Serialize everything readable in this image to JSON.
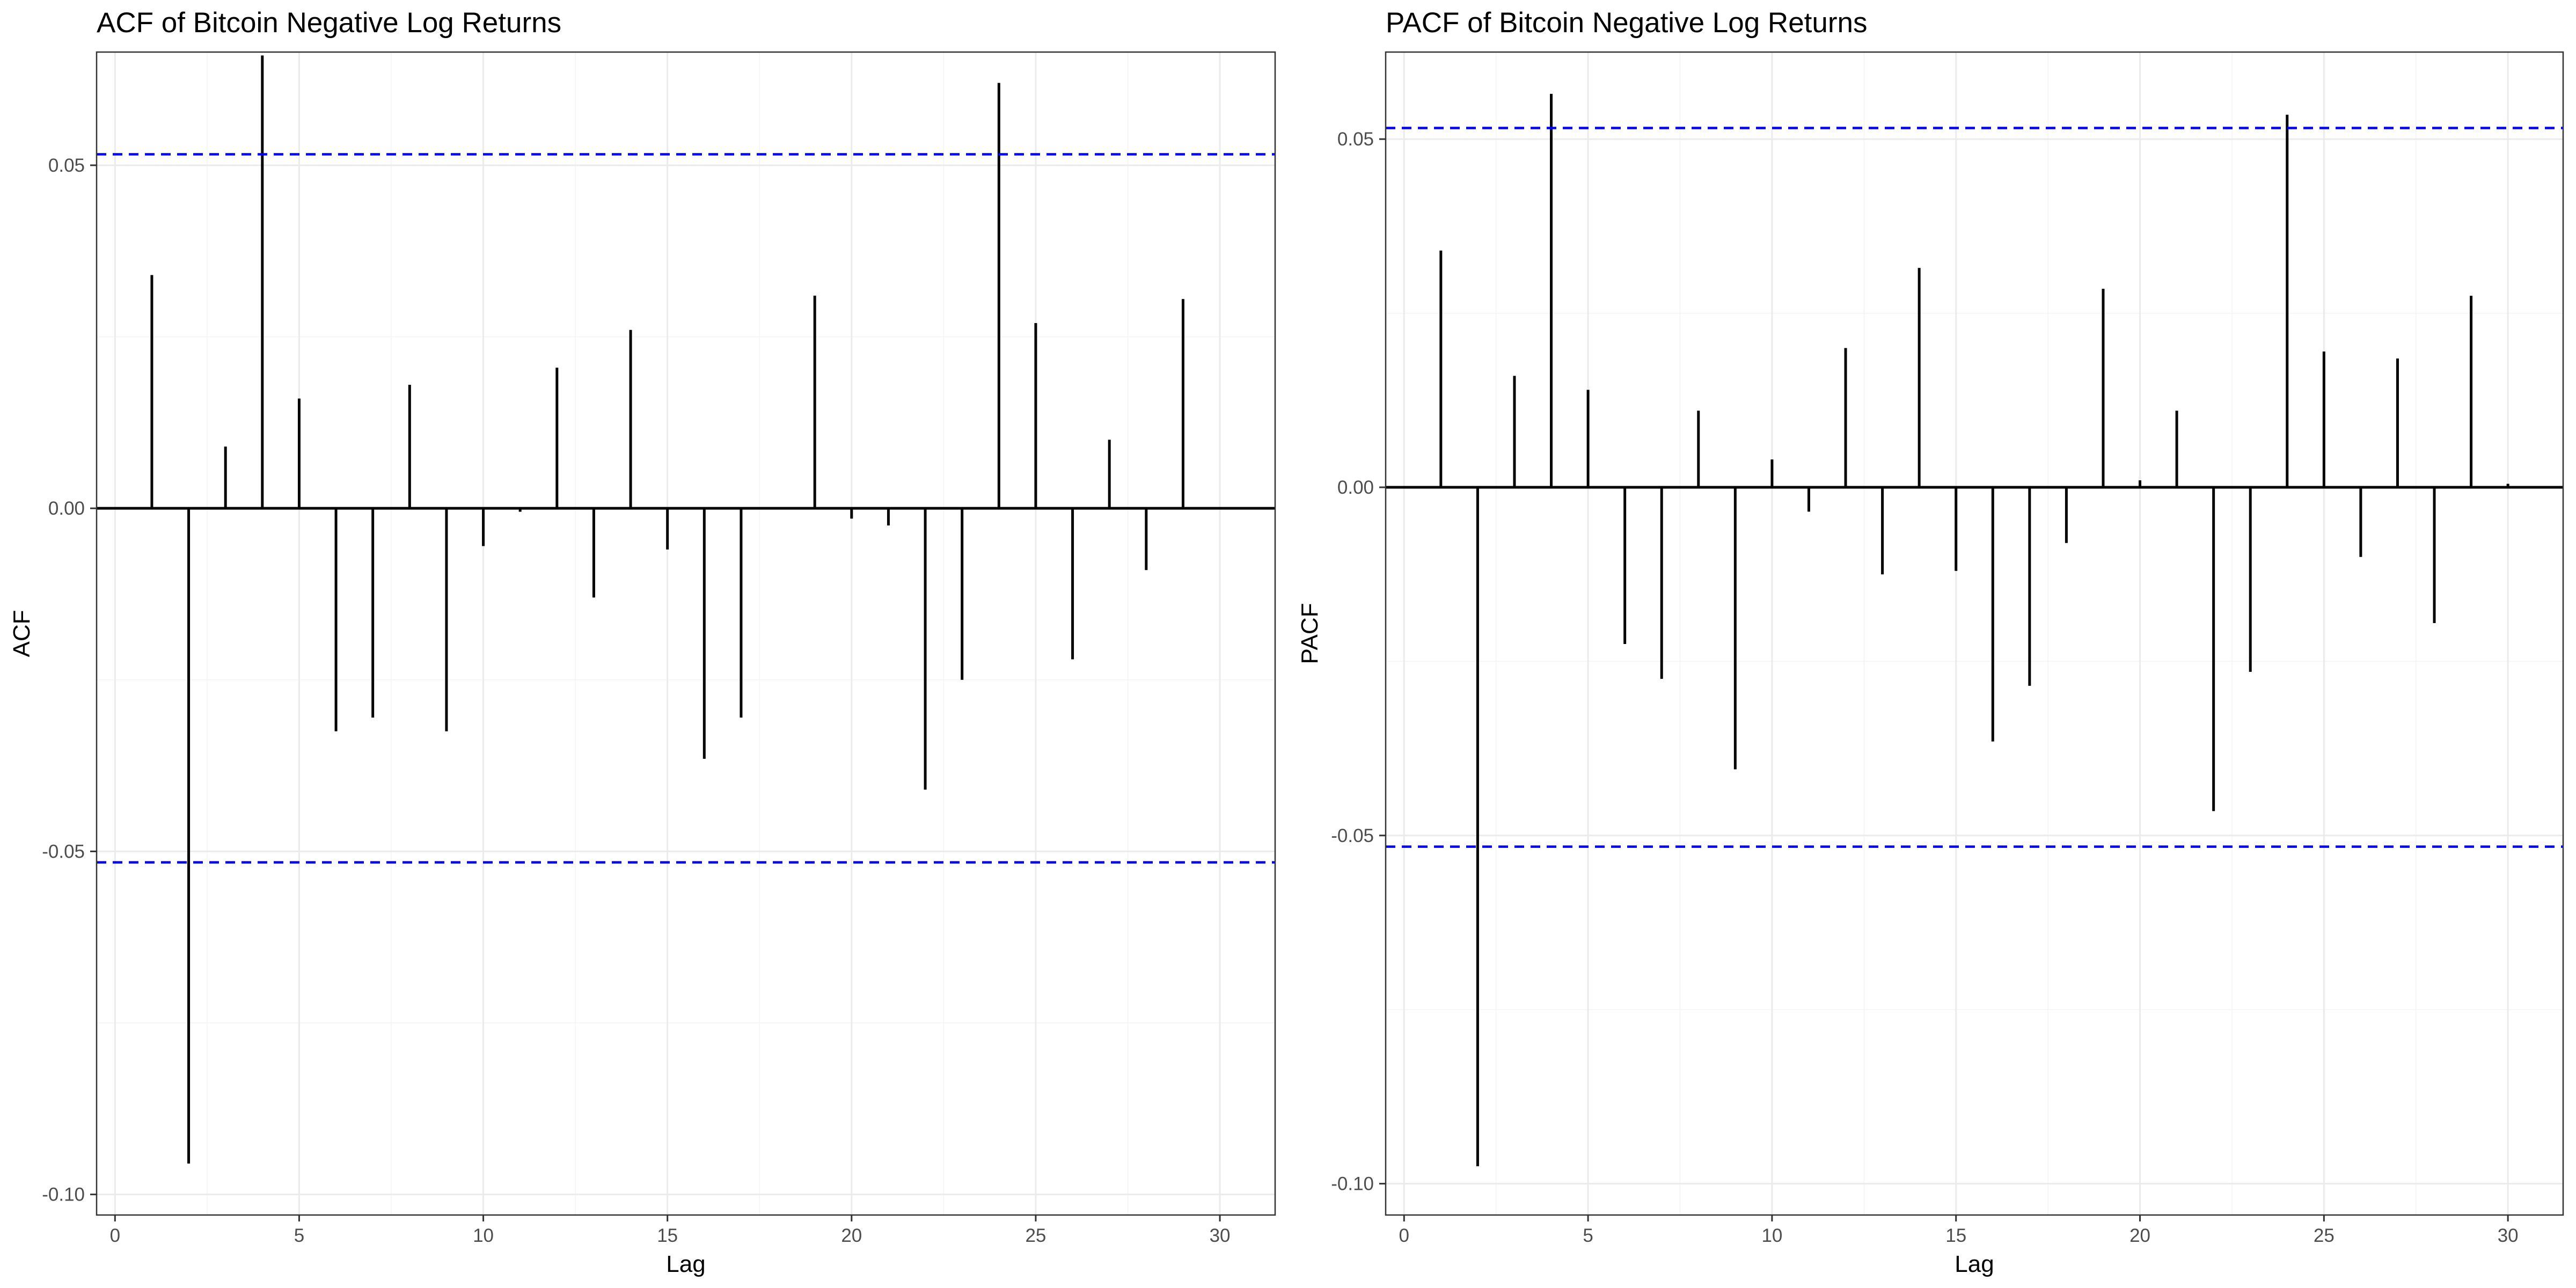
{
  "chart_data": [
    {
      "type": "bar",
      "title": "ACF of Bitcoin Negative Log Returns",
      "xlabel": "Lag",
      "ylabel": "ACF",
      "xlim": [
        -0.5,
        31.5
      ],
      "ylim": [
        -0.103,
        0.0665
      ],
      "x_ticks": [
        0,
        5,
        10,
        15,
        20,
        25,
        30
      ],
      "x_tick_labels": [
        "0",
        "5",
        "10",
        "15",
        "20",
        "25",
        "30"
      ],
      "y_ticks": [
        -0.1,
        -0.05,
        0,
        0.05
      ],
      "y_tick_labels": [
        "-0.10",
        "-0.05",
        "0.00",
        "0.05"
      ],
      "grid": true,
      "confidence_band": [
        -0.0516,
        0.0516
      ],
      "confidence_band_color": "#0000ff",
      "x": [
        1,
        2,
        3,
        4,
        5,
        6,
        7,
        8,
        9,
        10,
        11,
        12,
        13,
        14,
        15,
        16,
        17,
        18,
        19,
        20,
        21,
        22,
        23,
        24,
        25,
        26,
        27,
        28,
        29,
        30
      ],
      "values": [
        0.034,
        -0.0955,
        0.009,
        0.066,
        0.016,
        -0.0325,
        -0.0305,
        0.018,
        -0.0325,
        -0.0055,
        -0.0005,
        0.0205,
        -0.013,
        0.026,
        -0.006,
        -0.0365,
        -0.0305,
        0.0,
        0.031,
        -0.0015,
        -0.0025,
        -0.041,
        -0.025,
        0.062,
        0.027,
        -0.022,
        0.01,
        -0.009,
        0.0305,
        0.0
      ]
    },
    {
      "type": "bar",
      "title": "PACF of Bitcoin Negative Log Returns",
      "xlabel": "Lag",
      "ylabel": "PACF",
      "xlim": [
        -0.5,
        31.5
      ],
      "ylim": [
        -0.1045,
        0.0625
      ],
      "x_ticks": [
        0,
        5,
        10,
        15,
        20,
        25,
        30
      ],
      "x_tick_labels": [
        "0",
        "5",
        "10",
        "15",
        "20",
        "25",
        "30"
      ],
      "y_ticks": [
        -0.1,
        -0.05,
        0,
        0.05
      ],
      "y_tick_labels": [
        "-0.10",
        "-0.05",
        "0.00",
        "0.05"
      ],
      "grid": true,
      "confidence_band": [
        -0.0516,
        0.0516
      ],
      "confidence_band_color": "#0000ff",
      "x": [
        1,
        2,
        3,
        4,
        5,
        6,
        7,
        8,
        9,
        10,
        11,
        12,
        13,
        14,
        15,
        16,
        17,
        18,
        19,
        20,
        21,
        22,
        23,
        24,
        25,
        26,
        27,
        28,
        29,
        30
      ],
      "values": [
        0.034,
        -0.0975,
        0.016,
        0.0565,
        0.014,
        -0.0225,
        -0.0275,
        0.011,
        -0.0405,
        0.004,
        -0.0035,
        0.02,
        -0.0125,
        0.0315,
        -0.012,
        -0.0365,
        -0.0285,
        -0.008,
        0.0285,
        0.001,
        0.011,
        -0.0465,
        -0.0265,
        0.0535,
        0.0195,
        -0.01,
        0.0185,
        -0.0195,
        0.0275,
        0.0005
      ]
    }
  ]
}
